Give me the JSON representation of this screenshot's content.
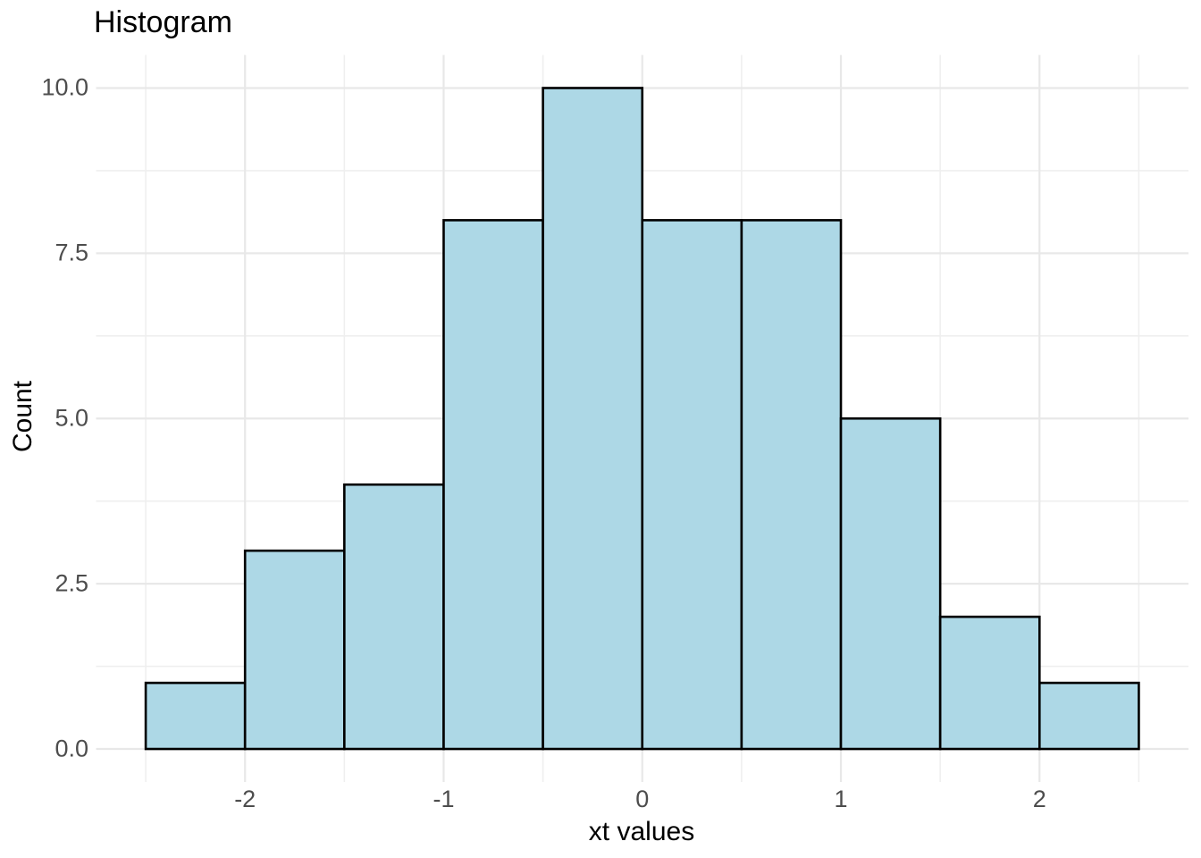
{
  "chart_data": {
    "type": "bar",
    "subtype": "histogram",
    "title": "Histogram",
    "xlabel": "xt values",
    "ylabel": "Count",
    "bin_width": 0.5,
    "bin_edges": [
      -2.5,
      -2.0,
      -1.5,
      -1.0,
      -0.5,
      0.0,
      0.5,
      1.0,
      1.5,
      2.0,
      2.5
    ],
    "counts": [
      1,
      3,
      4,
      8,
      10,
      8,
      8,
      5,
      2,
      1
    ],
    "x_ticks": {
      "values": [
        -2,
        -1,
        0,
        1,
        2
      ],
      "labels": [
        "-2",
        "-1",
        "0",
        "1",
        "2"
      ]
    },
    "y_ticks": {
      "values": [
        0,
        2.5,
        5,
        7.5,
        10
      ],
      "labels": [
        "0.0",
        "2.5",
        "5.0",
        "7.5",
        "10.0"
      ]
    },
    "x_minor": [
      -2.5,
      -1.5,
      -0.5,
      0.5,
      1.5,
      2.5
    ],
    "y_minor": [
      1.25,
      3.75,
      6.25,
      8.75
    ],
    "xlim": [
      -2.75,
      2.75
    ],
    "ylim": [
      -0.5,
      10.5
    ],
    "grid": "on",
    "legend": "none",
    "colors": {
      "bar_fill": "#ADD8E6",
      "bar_stroke": "#000000",
      "grid_major": "#E8E8E8",
      "grid_minor": "#EFEFEF",
      "tick_label": "#4D4D4D",
      "text": "#000000",
      "background": "#FFFFFF"
    }
  }
}
